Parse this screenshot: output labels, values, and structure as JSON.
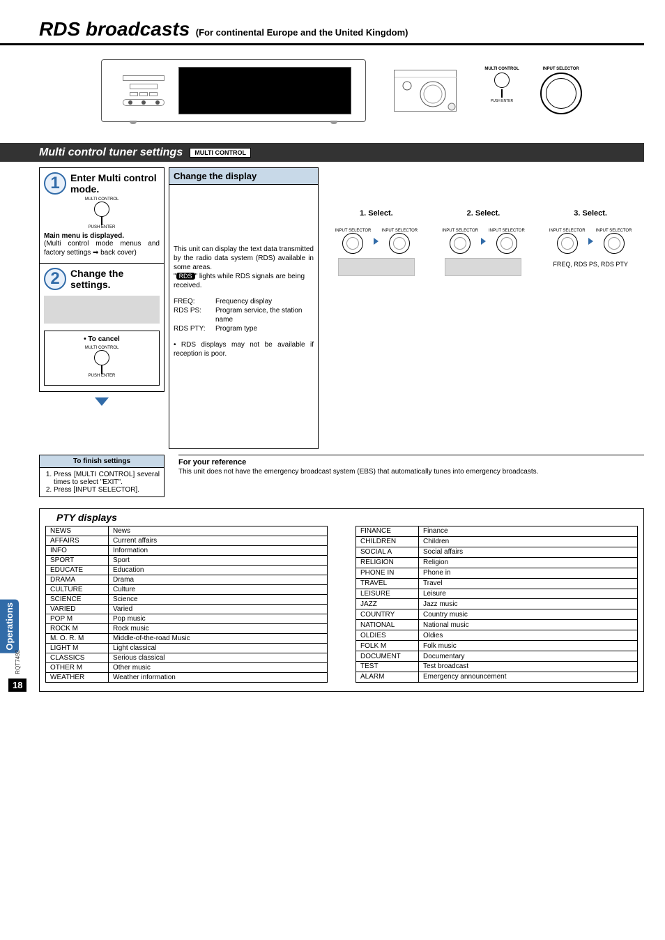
{
  "title": {
    "main": "RDS broadcasts",
    "sub": "(For continental Europe and the United Kingdom)"
  },
  "hero": {
    "multi_control_label": "MULTI CONTROL",
    "input_selector_label": "INPUT SELECTOR",
    "push_enter_label": "PUSH ENTER"
  },
  "section_bar": {
    "title": "Multi control tuner settings",
    "badge": "MULTI CONTROL"
  },
  "step1": {
    "title": "Enter Multi control mode.",
    "knob_top": "MULTI CONTROL",
    "knob_bottom": "PUSH ENTER",
    "body_bold": "Main menu is displayed.",
    "body": "(Multi control mode menus and factory settings ➡ back cover)"
  },
  "step2": {
    "title": "Change the settings."
  },
  "cancel": {
    "label": "• To cancel",
    "knob_top": "MULTI CONTROL",
    "knob_bottom": "PUSH ENTER"
  },
  "change_display": {
    "title": "Change the display",
    "p1": "This unit can display the text data transmitted by the radio data system (RDS) available in some areas.",
    "p2a": "\"",
    "p2_badge": "RDS",
    "p2b": "\" lights while RDS signals are being received.",
    "defs": [
      {
        "term": "FREQ:",
        "def": "Frequency display"
      },
      {
        "term": "RDS PS:",
        "def": "Program service, the station name"
      },
      {
        "term": "RDS PTY:",
        "def": "Program type"
      }
    ],
    "note": "• RDS displays may not be available if reception is poor."
  },
  "selects": {
    "labels": [
      "1. Select.",
      "2. Select.",
      "3. Select."
    ],
    "knob_tiny_left": "INPUT SELECTOR",
    "knob_tiny_right": "INPUT SELECTOR",
    "caption": "FREQ, RDS PS, RDS PTY"
  },
  "finish": {
    "title": "To finish settings",
    "step1": "Press [MULTI CONTROL] several times to select \"EXIT\".",
    "step2": "Press [INPUT SELECTOR]."
  },
  "reference": {
    "title": "For your reference",
    "body": "This unit does not have the emergency broadcast system (EBS) that automatically tunes into emergency broadcasts."
  },
  "pty": {
    "title": "PTY displays",
    "left": [
      {
        "code": "NEWS",
        "desc": "News"
      },
      {
        "code": "AFFAIRS",
        "desc": "Current affairs"
      },
      {
        "code": "INFO",
        "desc": "Information"
      },
      {
        "code": "SPORT",
        "desc": "Sport"
      },
      {
        "code": "EDUCATE",
        "desc": "Education"
      },
      {
        "code": "DRAMA",
        "desc": "Drama"
      },
      {
        "code": "CULTURE",
        "desc": "Culture"
      },
      {
        "code": "SCIENCE",
        "desc": "Science"
      },
      {
        "code": "VARIED",
        "desc": "Varied"
      },
      {
        "code": "POP M",
        "desc": "Pop music"
      },
      {
        "code": "ROCK M",
        "desc": "Rock music"
      },
      {
        "code": "M. O. R.  M",
        "desc": "Middle-of-the-road Music"
      },
      {
        "code": "LIGHT M",
        "desc": "Light classical"
      },
      {
        "code": "CLASSICS",
        "desc": "Serious classical"
      },
      {
        "code": "OTHER M",
        "desc": "Other music"
      },
      {
        "code": "WEATHER",
        "desc": "Weather information"
      }
    ],
    "right": [
      {
        "code": "FINANCE",
        "desc": "Finance"
      },
      {
        "code": "CHILDREN",
        "desc": "Children"
      },
      {
        "code": "SOCIAL A",
        "desc": "Social affairs"
      },
      {
        "code": "RELIGION",
        "desc": "Religion"
      },
      {
        "code": "PHONE IN",
        "desc": "Phone in"
      },
      {
        "code": "TRAVEL",
        "desc": "Travel"
      },
      {
        "code": "LEISURE",
        "desc": "Leisure"
      },
      {
        "code": "JAZZ",
        "desc": "Jazz music"
      },
      {
        "code": "COUNTRY",
        "desc": "Country music"
      },
      {
        "code": "NATIONAL",
        "desc": "National music"
      },
      {
        "code": "OLDIES",
        "desc": "Oldies"
      },
      {
        "code": "FOLK M",
        "desc": "Folk music"
      },
      {
        "code": "DOCUMENT",
        "desc": "Documentary"
      },
      {
        "code": "TEST",
        "desc": "Test broadcast"
      },
      {
        "code": "ALARM",
        "desc": "Emergency announcement"
      }
    ]
  },
  "side_tab": "Operations",
  "footer_code": "RQT7492",
  "page_number": "18",
  "colors": {
    "accent_blue": "#316ba8",
    "light_blue": "#c8d9e8",
    "gray_band": "#d9d9d9"
  }
}
